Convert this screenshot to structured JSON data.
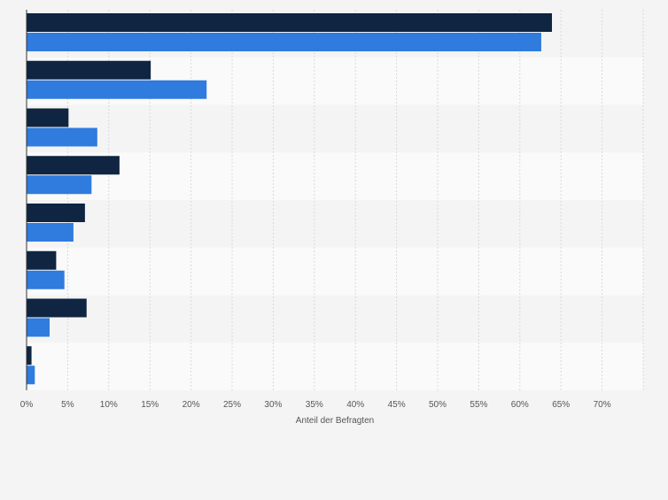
{
  "chart_data": {
    "type": "bar",
    "orientation": "horizontal",
    "categories": [
      "",
      "",
      "",
      "",
      "",
      "",
      "",
      ""
    ],
    "series": [
      {
        "values": [
          63.9,
          15.1,
          5.1,
          11.3,
          7.1,
          3.6,
          7.3,
          0.6
        ],
        "color": "#0f2542"
      },
      {
        "values": [
          62.6,
          21.9,
          8.6,
          7.9,
          5.7,
          4.6,
          2.8,
          1.0
        ],
        "color": "#2f7bde"
      }
    ],
    "xlabel": "Anteil der Befragten",
    "ylabel": "",
    "xlim": [
      0,
      75
    ],
    "xticks": [
      {
        "value": 0,
        "label": "0%"
      },
      {
        "value": 5,
        "label": "5%"
      },
      {
        "value": 10,
        "label": "10%"
      },
      {
        "value": 15,
        "label": "15%"
      },
      {
        "value": 20,
        "label": "20%"
      },
      {
        "value": 25,
        "label": "25%"
      },
      {
        "value": 30,
        "label": "30%"
      },
      {
        "value": 35,
        "label": "35%"
      },
      {
        "value": 40,
        "label": "40%"
      },
      {
        "value": 45,
        "label": "45%"
      },
      {
        "value": 50,
        "label": "50%"
      },
      {
        "value": 55,
        "label": "55%"
      },
      {
        "value": 60,
        "label": "60%"
      },
      {
        "value": 65,
        "label": "65%"
      },
      {
        "value": 70,
        "label": "70%"
      }
    ],
    "grid": true,
    "legend": "none"
  }
}
